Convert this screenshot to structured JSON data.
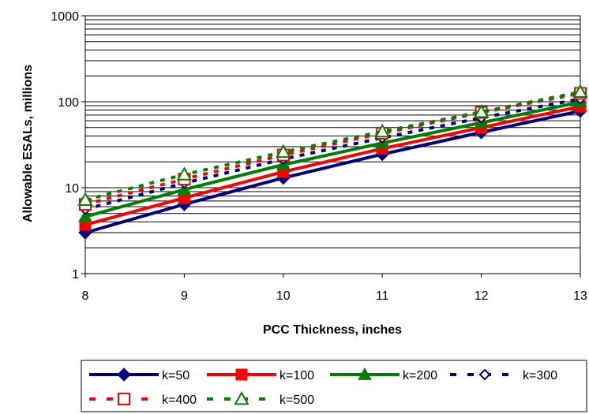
{
  "chart_data": {
    "type": "line",
    "title": "",
    "xlabel": "PCC Thickness, inches",
    "ylabel": "Allowable ESALs, millions",
    "x_ticks": [
      "8",
      "9",
      "10",
      "11",
      "12",
      "13"
    ],
    "y_ticks": [
      "1",
      "10",
      "100",
      "1000"
    ],
    "xlim": [
      8,
      13
    ],
    "ylim": [
      1,
      1000
    ],
    "y_scale": "log",
    "grid": "horizontal",
    "legend_position": "bottom",
    "x": [
      8,
      9,
      10,
      11,
      12,
      13
    ],
    "series": [
      {
        "name": "k=50",
        "color": "#000080",
        "line": "solid",
        "marker": "diamond",
        "values": [
          3.0,
          6.4,
          13.0,
          24.5,
          44.0,
          78.0
        ]
      },
      {
        "name": "k=100",
        "color": "#ff0000",
        "line": "solid",
        "marker": "square",
        "values": [
          3.7,
          7.6,
          15.3,
          28.5,
          50.0,
          88.0
        ]
      },
      {
        "name": "k=200",
        "color": "#008000",
        "line": "solid",
        "marker": "triangle",
        "values": [
          4.6,
          9.5,
          18.5,
          33.0,
          57.0,
          99.0
        ]
      },
      {
        "name": "k=300",
        "color": "#000080",
        "line": "dashed",
        "marker": "diamond-open",
        "values": [
          5.6,
          11.3,
          21.5,
          38.0,
          65.0,
          108.0
        ]
      },
      {
        "name": "k=400",
        "color": "#ff0000",
        "line": "dashed",
        "marker": "square-open",
        "values": [
          6.4,
          12.6,
          24.0,
          43.0,
          75.0,
          125.0
        ]
      },
      {
        "name": "k=500",
        "color": "#008000",
        "line": "dashed",
        "marker": "triangle-open",
        "values": [
          7.2,
          14.2,
          26.0,
          45.0,
          76.0,
          130.0
        ]
      }
    ]
  }
}
